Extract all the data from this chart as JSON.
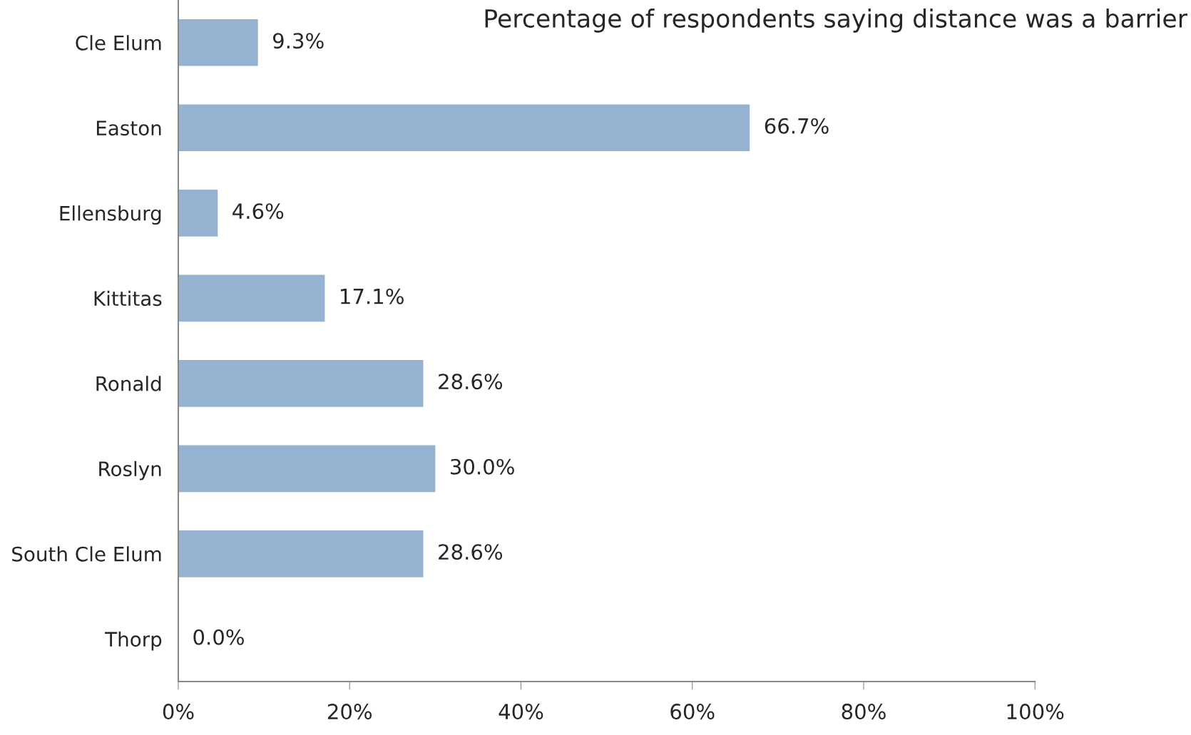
{
  "chart_data": {
    "type": "bar",
    "orientation": "horizontal",
    "title": "Percentage of respondents saying distance was a barrier",
    "categories": [
      "Cle Elum",
      "Easton",
      "Ellensburg",
      "Kittitas",
      "Ronald",
      "Roslyn",
      "South Cle Elum",
      "Thorp"
    ],
    "values": [
      9.3,
      66.7,
      4.6,
      17.1,
      28.6,
      30.0,
      28.6,
      0.0
    ],
    "value_labels": [
      "9.3%",
      "66.7%",
      "4.6%",
      "17.1%",
      "28.6%",
      "30.0%",
      "28.6%",
      "0.0%"
    ],
    "color": "#95b3d1",
    "xlim": [
      0,
      100
    ],
    "xticks": [
      {
        "value": 0,
        "label": "0%"
      },
      {
        "value": 20,
        "label": "20%"
      },
      {
        "value": 40,
        "label": "40%"
      },
      {
        "value": 60,
        "label": "60%"
      },
      {
        "value": 80,
        "label": "80%"
      },
      {
        "value": 100,
        "label": "100%"
      }
    ],
    "grid": false,
    "legend": false
  }
}
